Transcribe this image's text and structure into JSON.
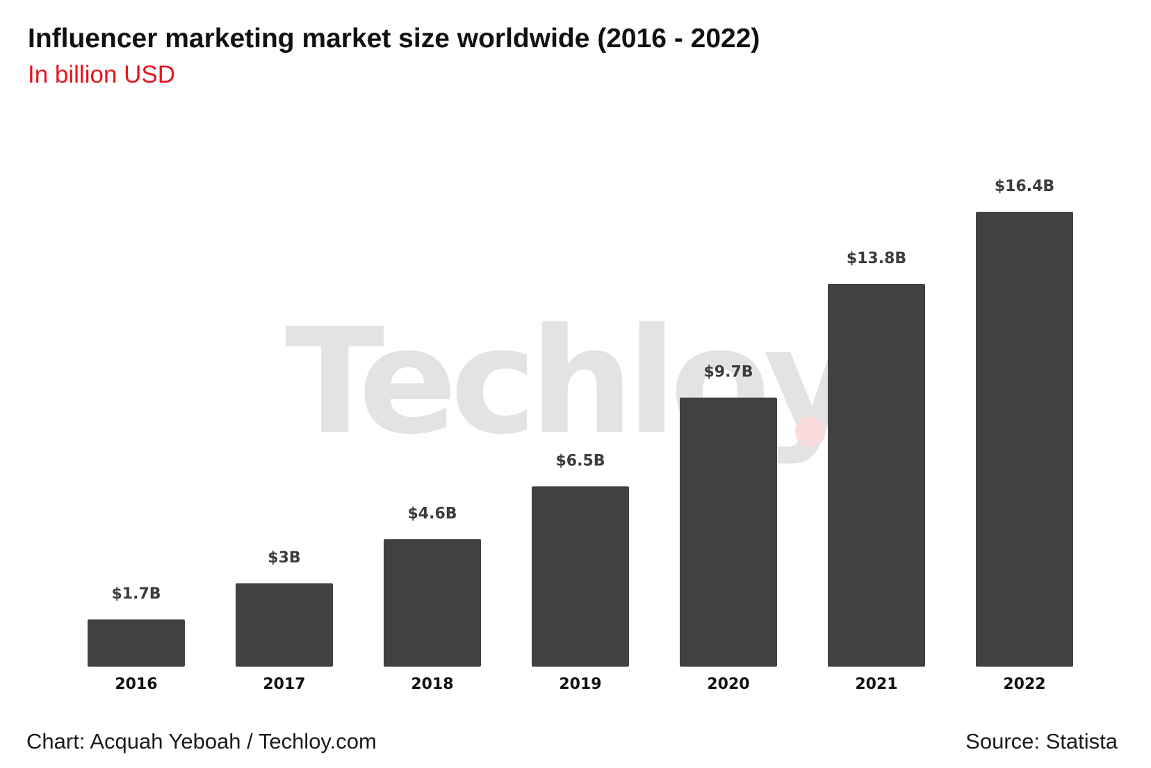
{
  "title": "Influencer marketing market size worldwide (2016 - 2022)",
  "subtitle": "In billion USD",
  "watermark": "Techloy",
  "credit": "Chart: Acquah Yeboah / Techloy.com",
  "source": "Source: Statista",
  "colors": {
    "bar": "#414141",
    "label": "#3c3c3c",
    "tick": "#111111",
    "subtitle": "#e8141d",
    "watermark": "#e3e3e3",
    "watermark_dot": "#fbdcdc"
  },
  "chart_data": {
    "type": "bar",
    "title": "Influencer marketing market size worldwide (2016 - 2022)",
    "subtitle": "In billion USD",
    "categories": [
      "2016",
      "2017",
      "2018",
      "2019",
      "2020",
      "2021",
      "2022"
    ],
    "values": [
      1.7,
      3,
      4.6,
      6.5,
      9.7,
      13.8,
      16.4
    ],
    "data_labels": [
      "$1.7B",
      "$3B",
      "$4.6B",
      "$6.5B",
      "$9.7B",
      "$13.8B",
      "$16.4B"
    ],
    "xlabel": "",
    "ylabel": "",
    "ylim": [
      0,
      16.4
    ],
    "grid": false,
    "legend": "none"
  }
}
